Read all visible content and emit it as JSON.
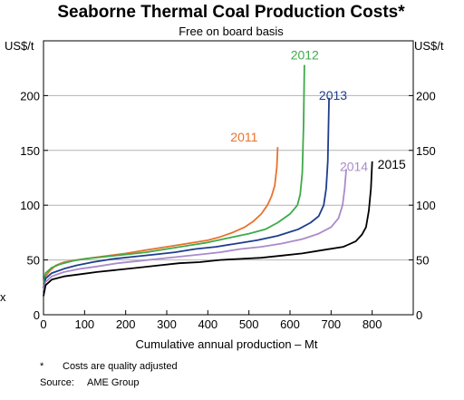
{
  "chart_data": {
    "type": "line",
    "title": "Seaborne Thermal Coal Production Costs*",
    "subtitle": "Free on board basis",
    "ylabel_left": "US$/t",
    "ylabel_right": "US$/t",
    "xlabel": "Cumulative annual production – Mt",
    "stray_mark": "x",
    "xlim": [
      0,
      900
    ],
    "ylim": [
      0,
      250
    ],
    "xticks": [
      "0",
      "100",
      "200",
      "300",
      "400",
      "500",
      "600",
      "700",
      "800"
    ],
    "yticks": [
      "0",
      "50",
      "100",
      "150",
      "200"
    ],
    "grid": "horizontal",
    "series": [
      {
        "name": "2011",
        "color": "#E8722E",
        "points": [
          [
            0,
            25
          ],
          [
            5,
            35
          ],
          [
            15,
            40
          ],
          [
            30,
            45
          ],
          [
            50,
            48
          ],
          [
            80,
            50
          ],
          [
            120,
            52
          ],
          [
            160,
            54
          ],
          [
            200,
            56
          ],
          [
            250,
            59
          ],
          [
            300,
            62
          ],
          [
            350,
            65
          ],
          [
            400,
            68
          ],
          [
            430,
            71
          ],
          [
            460,
            75
          ],
          [
            490,
            80
          ],
          [
            510,
            85
          ],
          [
            530,
            92
          ],
          [
            545,
            100
          ],
          [
            555,
            108
          ],
          [
            563,
            118
          ],
          [
            568,
            135
          ],
          [
            570,
            153
          ]
        ]
      },
      {
        "name": "2012",
        "color": "#3FA94A",
        "points": [
          [
            0,
            28
          ],
          [
            5,
            38
          ],
          [
            20,
            43
          ],
          [
            40,
            46
          ],
          [
            70,
            49
          ],
          [
            100,
            51
          ],
          [
            150,
            53
          ],
          [
            200,
            55
          ],
          [
            250,
            57
          ],
          [
            300,
            60
          ],
          [
            350,
            63
          ],
          [
            400,
            66
          ],
          [
            450,
            70
          ],
          [
            500,
            74
          ],
          [
            540,
            78
          ],
          [
            570,
            84
          ],
          [
            600,
            92
          ],
          [
            618,
            100
          ],
          [
            625,
            110
          ],
          [
            630,
            130
          ],
          [
            633,
            175
          ],
          [
            635,
            228
          ]
        ]
      },
      {
        "name": "2013",
        "color": "#1F3D8C",
        "points": [
          [
            0,
            24
          ],
          [
            5,
            33
          ],
          [
            20,
            38
          ],
          [
            50,
            42
          ],
          [
            80,
            45
          ],
          [
            120,
            48
          ],
          [
            170,
            51
          ],
          [
            220,
            53
          ],
          [
            270,
            55
          ],
          [
            320,
            57
          ],
          [
            370,
            60
          ],
          [
            420,
            62
          ],
          [
            470,
            65
          ],
          [
            520,
            68
          ],
          [
            570,
            72
          ],
          [
            620,
            78
          ],
          [
            650,
            84
          ],
          [
            670,
            90
          ],
          [
            682,
            100
          ],
          [
            688,
            115
          ],
          [
            692,
            140
          ],
          [
            695,
            198
          ]
        ]
      },
      {
        "name": "2014",
        "color": "#A98BC9",
        "points": [
          [
            0,
            22
          ],
          [
            5,
            30
          ],
          [
            20,
            35
          ],
          [
            50,
            39
          ],
          [
            90,
            42
          ],
          [
            130,
            44
          ],
          [
            180,
            47
          ],
          [
            230,
            49
          ],
          [
            280,
            51
          ],
          [
            330,
            53
          ],
          [
            380,
            55
          ],
          [
            430,
            57
          ],
          [
            480,
            60
          ],
          [
            530,
            62
          ],
          [
            580,
            65
          ],
          [
            630,
            69
          ],
          [
            670,
            74
          ],
          [
            700,
            80
          ],
          [
            718,
            88
          ],
          [
            728,
            100
          ],
          [
            733,
            115
          ],
          [
            737,
            133
          ]
        ]
      },
      {
        "name": "2015",
        "color": "#000000",
        "points": [
          [
            0,
            17
          ],
          [
            5,
            27
          ],
          [
            20,
            32
          ],
          [
            50,
            35
          ],
          [
            90,
            37
          ],
          [
            130,
            39
          ],
          [
            180,
            41
          ],
          [
            230,
            43
          ],
          [
            280,
            45
          ],
          [
            330,
            47
          ],
          [
            380,
            48
          ],
          [
            430,
            50
          ],
          [
            480,
            51
          ],
          [
            530,
            52
          ],
          [
            580,
            54
          ],
          [
            630,
            56
          ],
          [
            680,
            59
          ],
          [
            730,
            62
          ],
          [
            760,
            67
          ],
          [
            775,
            73
          ],
          [
            785,
            80
          ],
          [
            792,
            95
          ],
          [
            797,
            115
          ],
          [
            800,
            140
          ]
        ]
      }
    ]
  },
  "footnote": {
    "marker": "*",
    "text": "Costs are quality adjusted",
    "source_label": "Source:",
    "source_text": "AME Group"
  }
}
